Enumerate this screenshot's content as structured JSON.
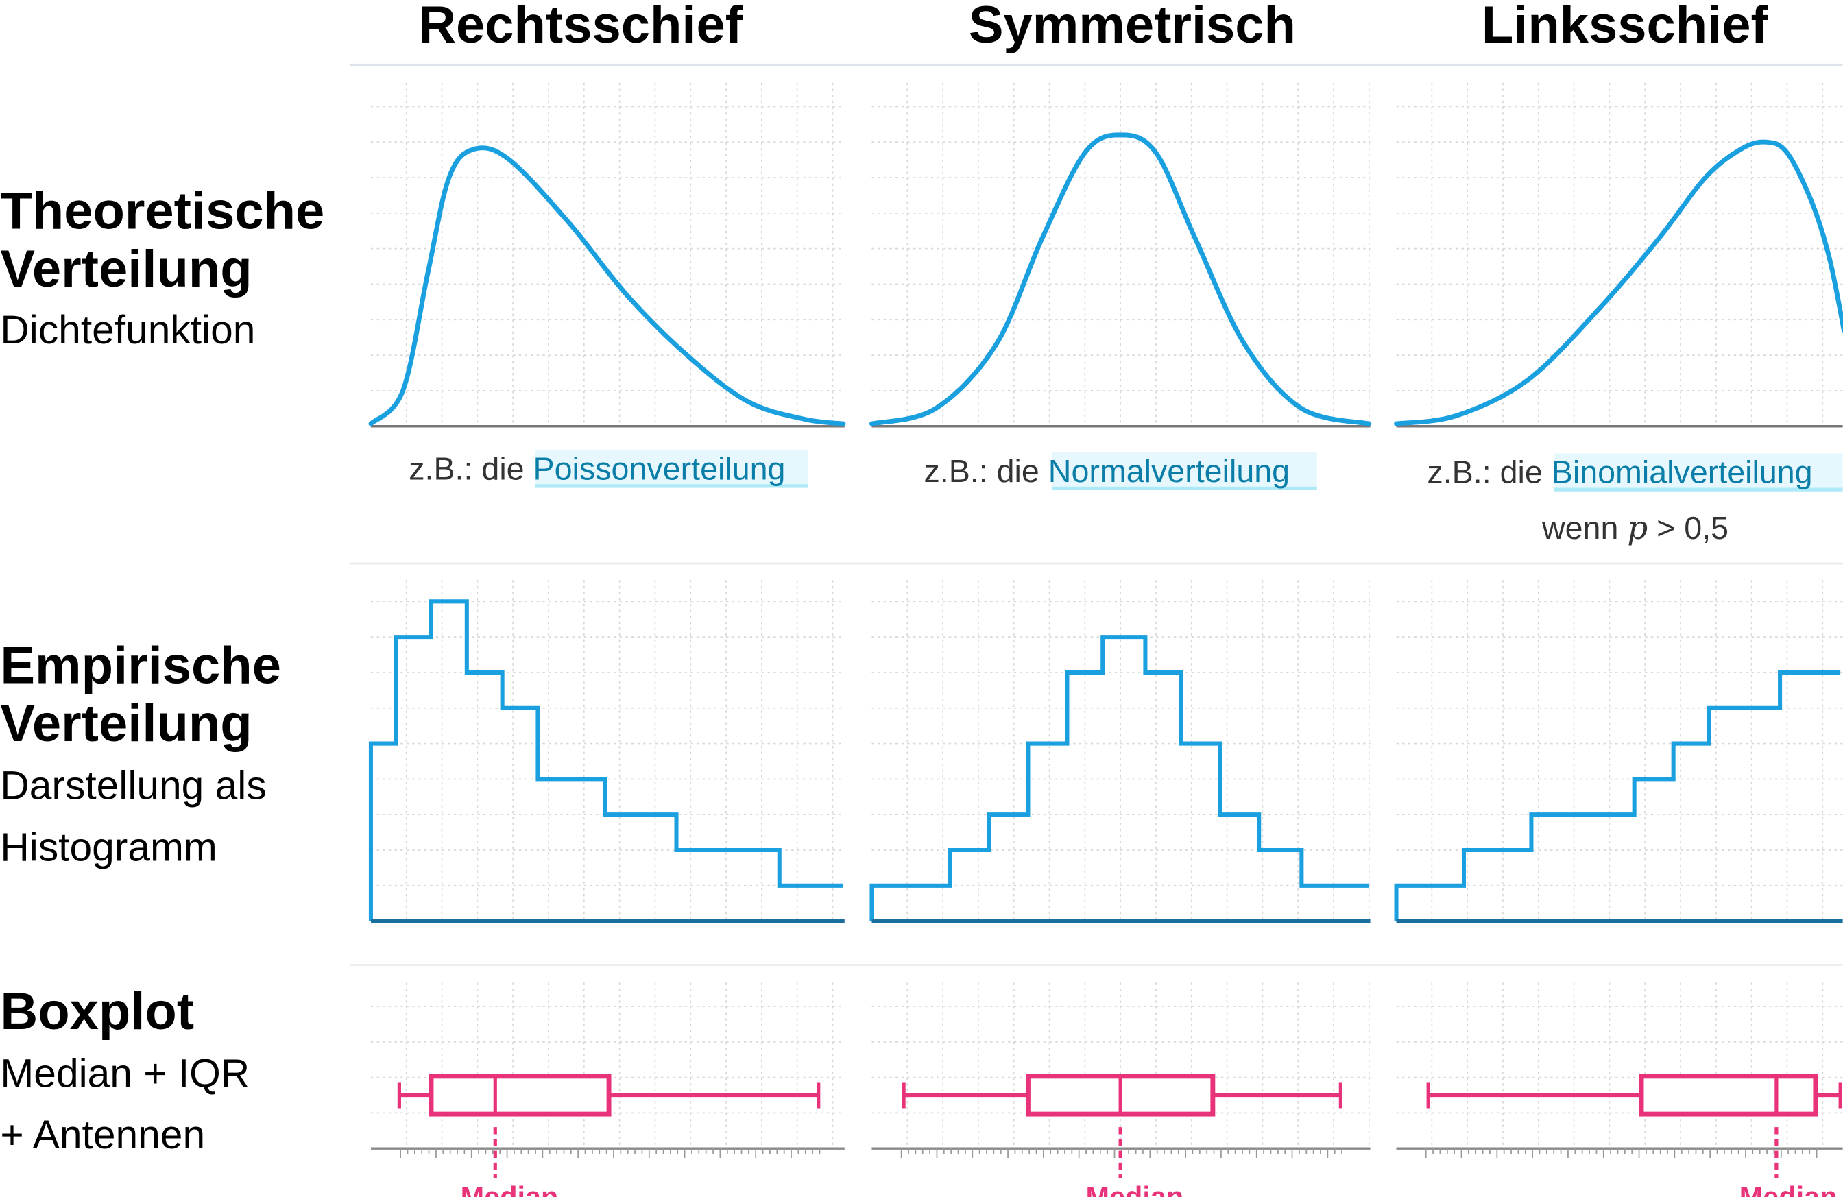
{
  "columns": [
    "Rechtsschief",
    "Symmetrisch",
    "Linksschief"
  ],
  "rows": [
    {
      "title_line1": "Theoretische",
      "title_line2": "Verteilung",
      "sub_line1": "Dichtefunktion",
      "sub_line2": ""
    },
    {
      "title_line1": "Empirische",
      "title_line2": "Verteilung",
      "sub_line1": "Darstellung als",
      "sub_line2": "Histogramm"
    },
    {
      "title_line1": "Boxplot",
      "title_line2": "",
      "sub_line1": "Median + IQR",
      "sub_line2": "+ Antennen"
    }
  ],
  "captions": [
    {
      "prefix": "z.B.: die ",
      "link": "Poissonverteilung"
    },
    {
      "prefix": "z.B.: die ",
      "link": "Normalverteilung"
    },
    {
      "prefix": "z.B.: die ",
      "link": "Binomialverteilung",
      "note_prefix": "wenn ",
      "note_var": "p",
      "note_suffix": " > 0,5"
    }
  ],
  "median_label": "Median",
  "colors": {
    "curve": "#1a9fdf",
    "boxplot": "#e8337a",
    "link": "#0a7ea8",
    "link_highlight": "#e6f8fd"
  },
  "chart_data": [
    {
      "type": "line",
      "name_col": "Rechtsschief",
      "points": [
        [
          0,
          0.07
        ],
        [
          0.9,
          1
        ],
        [
          1.6,
          4.3
        ],
        [
          2.2,
          7
        ],
        [
          2.9,
          7.8
        ],
        [
          3.9,
          7.5
        ],
        [
          5.6,
          5.7
        ],
        [
          7.2,
          3.7
        ],
        [
          8.9,
          2
        ],
        [
          10.6,
          0.7
        ],
        [
          12.2,
          0.2
        ],
        [
          13.3,
          0.07
        ]
      ]
    },
    {
      "type": "line",
      "name_col": "Symmetrisch",
      "points": [
        [
          0,
          0.07
        ],
        [
          1.8,
          0.5
        ],
        [
          3.5,
          2.3
        ],
        [
          4.8,
          5.3
        ],
        [
          6,
          7.7
        ],
        [
          7,
          8.2
        ],
        [
          8,
          7.7
        ],
        [
          9.1,
          5.3
        ],
        [
          10.5,
          2.3
        ],
        [
          12.1,
          0.5
        ],
        [
          14,
          0.07
        ]
      ]
    },
    {
      "type": "line",
      "name_col": "Linksschief",
      "points": [
        [
          0,
          0.07
        ],
        [
          1.7,
          0.3
        ],
        [
          3.7,
          1.3
        ],
        [
          5.7,
          3.3
        ],
        [
          7.4,
          5.3
        ],
        [
          8.7,
          7
        ],
        [
          9.7,
          7.8
        ],
        [
          10.4,
          8
        ],
        [
          11,
          7.7
        ],
        [
          11.7,
          6.3
        ],
        [
          12.2,
          4.7
        ],
        [
          12.6,
          2.7
        ]
      ]
    },
    {
      "type": "bar",
      "histogram": true,
      "edges": [
        0,
        0.7,
        1.7,
        2.7,
        3.7,
        4.7,
        6.6,
        8.6,
        11.5,
        13.3
      ],
      "values": [
        5,
        8,
        9,
        7,
        6,
        4,
        3,
        2,
        1
      ]
    },
    {
      "type": "bar",
      "histogram": true,
      "edges": [
        0,
        2.2,
        3.3,
        4.4,
        5.5,
        6.5,
        7.7,
        8.7,
        9.8,
        10.9,
        12.1,
        14
      ],
      "values": [
        1,
        2,
        3,
        5,
        7,
        8,
        7,
        5,
        3,
        2,
        1
      ]
    },
    {
      "type": "bar",
      "histogram": true,
      "edges": [
        0,
        1.9,
        3.8,
        6.7,
        7.8,
        8.8,
        10.8,
        12.5
      ],
      "values": [
        1,
        2,
        3,
        4,
        5,
        6,
        7
      ]
    },
    {
      "type": "boxplot",
      "min": 0.8,
      "q1": 1.7,
      "median": 3.5,
      "q3": 6.7,
      "max": 12.6
    },
    {
      "type": "boxplot",
      "min": 0.9,
      "q1": 4.4,
      "median": 7.0,
      "q3": 9.6,
      "max": 13.2
    },
    {
      "type": "boxplot",
      "min": 0.9,
      "q1": 6.9,
      "median": 10.7,
      "q3": 11.8,
      "max": 12.5
    }
  ]
}
